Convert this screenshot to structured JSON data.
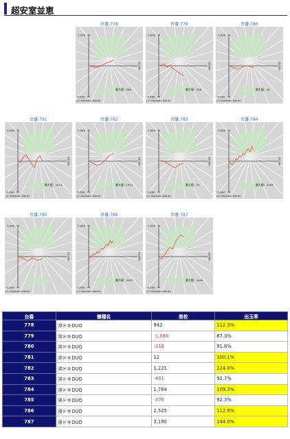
{
  "page": {
    "title": "超安室並恵"
  },
  "graph_labels": {
    "y_max": "5,000",
    "y_min": "-5,000",
    "x_max": "10,000",
    "max_label": "最大値：",
    "copyright": "(C) Daikoku Denki."
  },
  "graphs": [
    {
      "link": "台番:778",
      "max_value": "966",
      "y": [
        0,
        -120,
        -250,
        -140,
        150,
        450,
        650,
        942
      ]
    },
    {
      "link": "台番:779",
      "max_value": "306",
      "y": [
        0,
        120,
        300,
        -250,
        100,
        -400,
        -700,
        -1000,
        -1300,
        -1586
      ]
    },
    {
      "link": "台番:780",
      "max_value": "49",
      "y": [
        0,
        -250,
        -520,
        -300,
        40,
        -100,
        -318
      ]
    },
    {
      "link": "台番:781",
      "max_value": "1031",
      "y": [
        0,
        -180,
        700,
        1031,
        300,
        -400,
        -1000,
        350,
        900,
        12
      ]
    },
    {
      "link": "台番:782",
      "max_value": "1312",
      "y": [
        0,
        -300,
        -700,
        -500,
        200,
        900,
        1221
      ]
    },
    {
      "link": "台番:783",
      "max_value": "93",
      "y": [
        0,
        93,
        -300,
        -700,
        -1050,
        -500,
        -401
      ]
    },
    {
      "link": "台番:784",
      "max_value": "2386",
      "y": [
        0,
        -300,
        -600,
        -200,
        400,
        200,
        900,
        700,
        1300,
        1050,
        1700,
        2000,
        1500,
        2386,
        1764
      ]
    },
    {
      "link": "台番:785",
      "max_value": "",
      "y": [
        0,
        -300,
        -700,
        -250,
        -600,
        -376
      ]
    },
    {
      "link": "台番:786",
      "max_value": "2597",
      "y": [
        0,
        -200,
        100,
        400,
        300,
        800,
        600,
        1100,
        1300,
        1200,
        1600,
        2000,
        1800,
        2597,
        2200,
        2525
      ]
    },
    {
      "link": "台番:787",
      "max_value": "3499",
      "y": [
        0,
        -400,
        200,
        900,
        1500,
        1200,
        2300,
        3000,
        3499,
        3190
      ]
    }
  ],
  "table": {
    "headers": [
      "台番",
      "機種名",
      "差枚",
      "出玉率"
    ],
    "rows": [
      {
        "num": "778",
        "model": "沖ドキDUO",
        "diff": "942",
        "rate": "112.3%",
        "neg": false,
        "hi": true
      },
      {
        "num": "779",
        "model": "沖ドキDUO",
        "diff": "-1,586",
        "rate": "87.3%",
        "neg": true,
        "hi": false
      },
      {
        "num": "780",
        "model": "沖ドキDUO",
        "diff": "-318",
        "rate": "91.8%",
        "neg": true,
        "hi": false
      },
      {
        "num": "781",
        "model": "沖ドキDUO",
        "diff": "12",
        "rate": "100.1%",
        "neg": false,
        "hi": true
      },
      {
        "num": "782",
        "model": "沖ドキDUO",
        "diff": "1,221",
        "rate": "124.0%",
        "neg": false,
        "hi": true
      },
      {
        "num": "783",
        "model": "沖ドキDUO",
        "diff": "-401",
        "rate": "92.7%",
        "neg": true,
        "hi": false
      },
      {
        "num": "784",
        "model": "沖ドキDUO",
        "diff": "1,764",
        "rate": "109.3%",
        "neg": false,
        "hi": true
      },
      {
        "num": "785",
        "model": "沖ドキDUO",
        "diff": "-376",
        "rate": "92.3%",
        "neg": true,
        "hi": false
      },
      {
        "num": "786",
        "model": "沖ドキDUO",
        "diff": "2,525",
        "rate": "112.9%",
        "neg": false,
        "hi": true
      },
      {
        "num": "787",
        "model": "沖ドキDUO",
        "diff": "3,190",
        "rate": "144.0%",
        "neg": false,
        "hi": true
      }
    ]
  },
  "colors": {
    "header_bg": "#0f1370",
    "highlight": "#ffff00",
    "negative": "#e03030",
    "line": "#e8613c",
    "link": "#2f6fb5"
  }
}
